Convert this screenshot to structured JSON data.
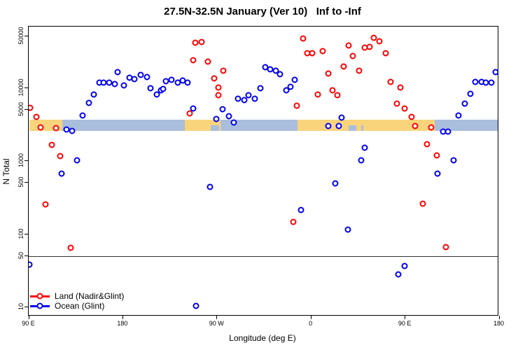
{
  "title": "27.5N-32.5N January (Ver 10)   Inf to -Inf",
  "chart_data": {
    "type": "scatter",
    "title": "27.5N-32.5N January (Ver 10)   Inf to -Inf",
    "xlabel": "Longitude (deg E)",
    "ylabel": "N Total",
    "x_axis": {
      "note": "degrees measured from left edge; axis wraps 90E->180->90W->0->90E->180",
      "range_deg": [
        0,
        450
      ],
      "ticks": [
        {
          "deg": 0,
          "label": "90 E"
        },
        {
          "deg": 90,
          "label": "180"
        },
        {
          "deg": 180,
          "label": "90 W"
        },
        {
          "deg": 270,
          "label": "0"
        },
        {
          "deg": 360,
          "label": "90 E"
        },
        {
          "deg": 450,
          "label": "180"
        }
      ]
    },
    "y_axis": {
      "scale": "log",
      "range": [
        10,
        68000
      ],
      "ticks": [
        {
          "value": 50000,
          "label": "50000"
        },
        {
          "value": 10000,
          "label": "10000"
        },
        {
          "value": 5000,
          "label": "5000"
        },
        {
          "value": 1000,
          "label": "1000"
        },
        {
          "value": 500,
          "label": "500"
        },
        {
          "value": 100,
          "label": "100"
        },
        {
          "value": 50,
          "label": "50"
        },
        {
          "value": 10,
          "label": "10"
        }
      ],
      "reference_line_value": 50
    },
    "map_band": {
      "description": "land/ocean strip along longitude at N≈2600-3700",
      "land_color": "#fad47c",
      "ocean_color": "#a9bedd",
      "segments": [
        {
          "from": 0,
          "to": 32,
          "surface": "land"
        },
        {
          "from": 32,
          "to": 149,
          "surface": "ocean"
        },
        {
          "from": 149,
          "to": 183,
          "surface": "land"
        },
        {
          "from": 183,
          "to": 257,
          "surface": "ocean"
        },
        {
          "from": 257,
          "to": 388,
          "surface": "land"
        },
        {
          "from": 388,
          "to": 450,
          "surface": "ocean"
        }
      ],
      "ocean_specks_in_land": [
        {
          "from": 174,
          "to": 182
        },
        {
          "from": 306,
          "to": 313
        },
        {
          "from": 318,
          "to": 320
        }
      ]
    },
    "series": [
      {
        "name": "Land (Nadir&Glint)",
        "color": "#ff0000",
        "points": [
          [
            1,
            5300
          ],
          [
            7,
            4000
          ],
          [
            11,
            2900
          ],
          [
            26,
            2800
          ],
          [
            22,
            1660
          ],
          [
            30,
            1170
          ],
          [
            16,
            255
          ],
          [
            40,
            65
          ],
          [
            154,
            4500
          ],
          [
            159,
            41000
          ],
          [
            165,
            42000
          ],
          [
            157,
            24000
          ],
          [
            171,
            23000
          ],
          [
            186,
            17000
          ],
          [
            177,
            13500
          ],
          [
            181,
            10100
          ],
          [
            181,
            7900
          ],
          [
            253,
            147
          ],
          [
            256,
            5700
          ],
          [
            262,
            47000
          ],
          [
            266,
            30000
          ],
          [
            271,
            29500
          ],
          [
            281,
            32000
          ],
          [
            276,
            8100
          ],
          [
            286,
            15700
          ],
          [
            290,
            9300
          ],
          [
            295,
            7900
          ],
          [
            301,
            19600
          ],
          [
            306,
            38000
          ],
          [
            310,
            27000
          ],
          [
            316,
            17000
          ],
          [
            321,
            35500
          ],
          [
            326,
            36000
          ],
          [
            330,
            48000
          ],
          [
            335,
            43000
          ],
          [
            341,
            30000
          ],
          [
            346,
            12000
          ],
          [
            355,
            10100
          ],
          [
            352,
            6100
          ],
          [
            359,
            5200
          ],
          [
            366,
            4000
          ],
          [
            369,
            3000
          ],
          [
            385,
            2900
          ],
          [
            381,
            1700
          ],
          [
            390,
            1190
          ],
          [
            377,
            260
          ],
          [
            399,
            66
          ]
        ]
      },
      {
        "name": "Ocean (Glint)",
        "color": "#0000ee",
        "points": [
          [
            0,
            38
          ],
          [
            36,
            2700
          ],
          [
            41,
            2600
          ],
          [
            51,
            4200
          ],
          [
            57,
            6200
          ],
          [
            62,
            8100
          ],
          [
            67,
            11800
          ],
          [
            71,
            11800
          ],
          [
            77,
            11800
          ],
          [
            82,
            11300
          ],
          [
            85,
            16400
          ],
          [
            91,
            10800
          ],
          [
            96,
            13800
          ],
          [
            101,
            13200
          ],
          [
            107,
            15000
          ],
          [
            113,
            14000
          ],
          [
            116,
            9900
          ],
          [
            122,
            8100
          ],
          [
            126,
            9300
          ],
          [
            128,
            9700
          ],
          [
            131,
            12300
          ],
          [
            136,
            12900
          ],
          [
            142,
            11800
          ],
          [
            147,
            12600
          ],
          [
            152,
            11800
          ],
          [
            31,
            670
          ],
          [
            46,
            1020
          ],
          [
            157,
            5200
          ],
          [
            160,
            10.5
          ],
          [
            173,
            440
          ],
          [
            179,
            3750
          ],
          [
            185,
            5100
          ],
          [
            191,
            4100
          ],
          [
            196,
            3360
          ],
          [
            200,
            7100
          ],
          [
            206,
            6800
          ],
          [
            210,
            7900
          ],
          [
            216,
            7100
          ],
          [
            221,
            9900
          ],
          [
            226,
            19000
          ],
          [
            231,
            18000
          ],
          [
            236,
            17100
          ],
          [
            240,
            15400
          ],
          [
            246,
            9300
          ],
          [
            250,
            10300
          ],
          [
            254,
            12900
          ],
          [
            260,
            214
          ],
          [
            286,
            3000
          ],
          [
            296,
            3000
          ],
          [
            299,
            3900
          ],
          [
            293,
            490
          ],
          [
            305,
            115
          ],
          [
            318,
            1020
          ],
          [
            321,
            1520
          ],
          [
            353,
            28
          ],
          [
            359,
            37
          ],
          [
            391,
            670
          ],
          [
            406,
            1020
          ],
          [
            396,
            2500
          ],
          [
            401,
            2500
          ],
          [
            411,
            4200
          ],
          [
            417,
            6100
          ],
          [
            422,
            8300
          ],
          [
            427,
            12100
          ],
          [
            433,
            12000
          ],
          [
            437,
            11800
          ],
          [
            442,
            11800
          ],
          [
            446,
            16400
          ]
        ]
      }
    ],
    "legend": {
      "position": "bottom-left-inside",
      "items": [
        {
          "label": "Land (Nadir&Glint)",
          "color": "#ff0000"
        },
        {
          "label": "Ocean (Glint)",
          "color": "#0000ee"
        }
      ]
    }
  }
}
